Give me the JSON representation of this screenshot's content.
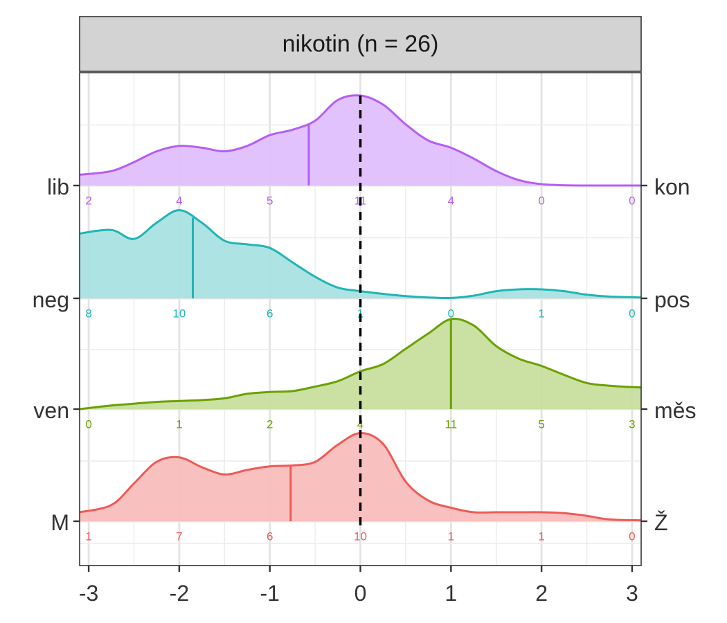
{
  "chart_data": {
    "type": "ridgeline",
    "title": "nikotin (n = 26)",
    "xlabel": "",
    "ylabel": "",
    "xlim": [
      -3.1,
      3.1
    ],
    "x_ticks": [
      -3,
      -2,
      -1,
      0,
      1,
      2,
      3
    ],
    "x_tick_labels": [
      "-3",
      "-2",
      "-1",
      "0",
      "1",
      "2",
      "3"
    ],
    "reference_line_x": 0,
    "grid": true,
    "count_positions": [
      -3,
      -2,
      -1,
      0,
      1,
      2,
      3
    ],
    "density_x": [
      -3.1,
      -2.75,
      -2.5,
      -2.25,
      -2.0,
      -1.75,
      -1.5,
      -1.25,
      -1.0,
      -0.75,
      -0.5,
      -0.25,
      0.0,
      0.25,
      0.5,
      0.75,
      1.0,
      1.25,
      1.5,
      1.75,
      2.0,
      2.25,
      2.5,
      2.75,
      3.1
    ],
    "series": [
      {
        "left_label": "lib",
        "right_label": "kon",
        "color": "#B55EF5",
        "fill": "#E0BDFC",
        "mean": -0.57,
        "counts": [
          "2",
          "4",
          "5",
          "11",
          "4",
          "0",
          "0"
        ],
        "density": [
          0.12,
          0.16,
          0.26,
          0.38,
          0.44,
          0.42,
          0.38,
          0.44,
          0.56,
          0.62,
          0.72,
          0.95,
          1.0,
          0.9,
          0.68,
          0.5,
          0.42,
          0.3,
          0.16,
          0.06,
          0.015,
          0.003,
          0.0,
          0.0,
          0.0
        ]
      },
      {
        "left_label": "neg",
        "right_label": "pos",
        "color": "#1FB5B5",
        "fill": "#A6E1E1",
        "mean": -1.85,
        "counts": [
          "8",
          "10",
          "6",
          "1",
          "0",
          "1",
          "0"
        ],
        "density": [
          0.72,
          0.76,
          0.66,
          0.84,
          0.98,
          0.84,
          0.64,
          0.6,
          0.56,
          0.4,
          0.24,
          0.12,
          0.08,
          0.05,
          0.025,
          0.01,
          0.005,
          0.03,
          0.08,
          0.1,
          0.1,
          0.08,
          0.04,
          0.02,
          0.01
        ]
      },
      {
        "left_label": "ven",
        "right_label": "měs",
        "color": "#6BA000",
        "fill": "#C6DE9B",
        "mean": 1.0,
        "counts": [
          "0",
          "1",
          "2",
          "4",
          "11",
          "5",
          "3"
        ],
        "density": [
          0.0,
          0.04,
          0.06,
          0.08,
          0.09,
          0.1,
          0.12,
          0.17,
          0.19,
          0.2,
          0.25,
          0.31,
          0.42,
          0.5,
          0.67,
          0.84,
          1.0,
          0.93,
          0.7,
          0.56,
          0.48,
          0.38,
          0.29,
          0.26,
          0.24
        ]
      },
      {
        "left_label": "M",
        "right_label": "Ž",
        "color": "#EF5A55",
        "fill": "#F7BCBB",
        "mean": -0.77,
        "counts": [
          "1",
          "7",
          "6",
          "10",
          "1",
          "1",
          "0"
        ],
        "density": [
          0.1,
          0.18,
          0.42,
          0.66,
          0.71,
          0.6,
          0.52,
          0.57,
          0.61,
          0.62,
          0.66,
          0.85,
          0.98,
          0.86,
          0.44,
          0.23,
          0.15,
          0.1,
          0.1,
          0.1,
          0.1,
          0.09,
          0.06,
          0.02,
          0.01
        ]
      }
    ]
  }
}
